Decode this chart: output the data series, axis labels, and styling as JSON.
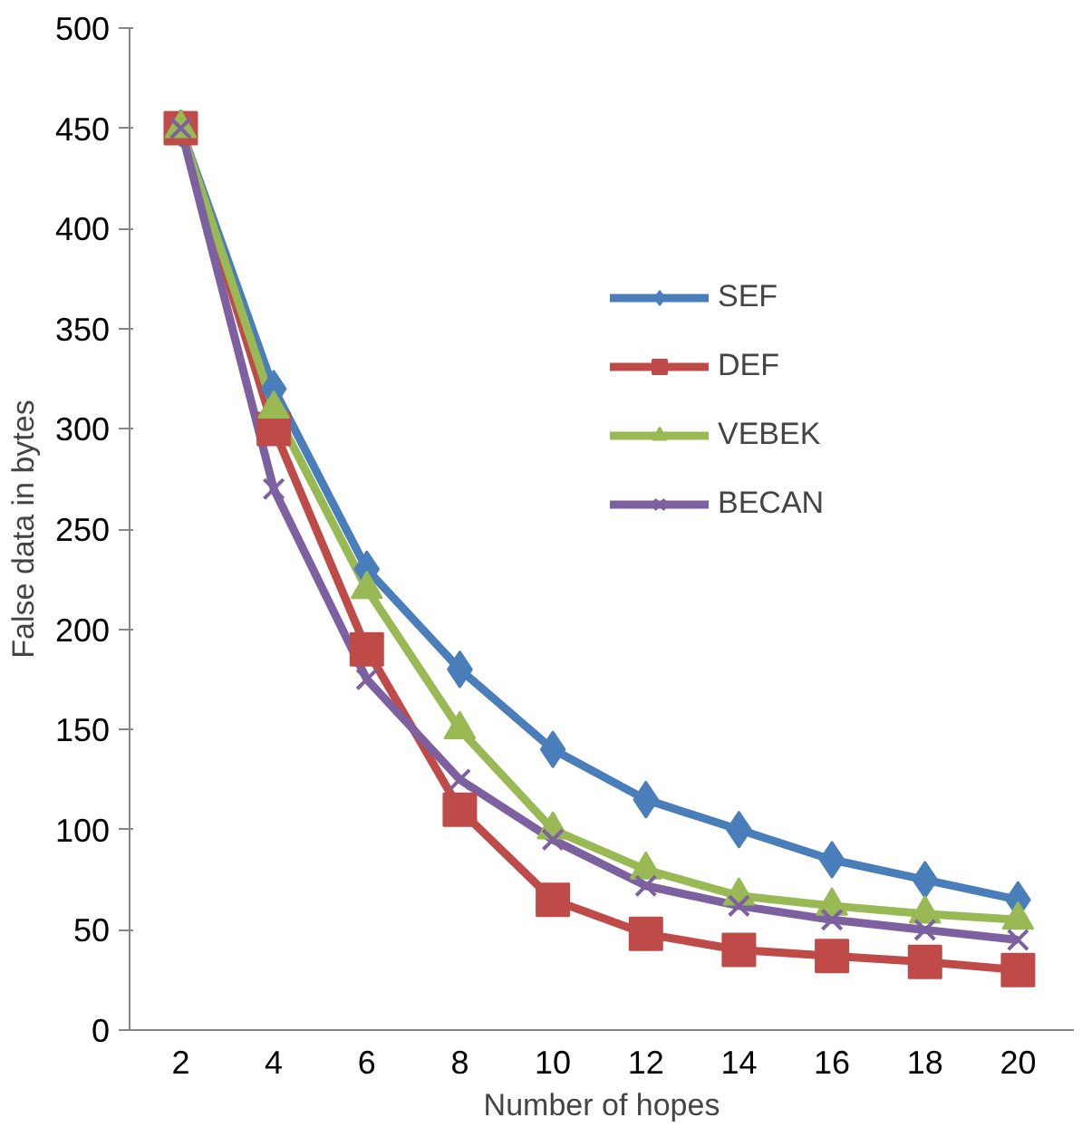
{
  "chart_data": {
    "type": "line",
    "xlabel": "Number of hopes",
    "ylabel": "False data in bytes",
    "categories": [
      "2",
      "4",
      "6",
      "8",
      "10",
      "12",
      "14",
      "16",
      "18",
      "20"
    ],
    "ylim": [
      0,
      500
    ],
    "yticks": [
      0,
      50,
      100,
      150,
      200,
      250,
      300,
      350,
      400,
      450,
      500
    ],
    "grid": false,
    "legend": "top right",
    "series": [
      {
        "name": "SEF",
        "color": "#4a7ebb",
        "marker": "diamond",
        "values": [
          450,
          320,
          230,
          180,
          140,
          115,
          100,
          85,
          75,
          65
        ]
      },
      {
        "name": "DEF",
        "color": "#be4b48",
        "marker": "square",
        "values": [
          450,
          300,
          190,
          110,
          65,
          48,
          40,
          37,
          34,
          30
        ]
      },
      {
        "name": "VEBEK",
        "color": "#98b954",
        "marker": "triangle",
        "values": [
          450,
          310,
          220,
          150,
          100,
          80,
          67,
          62,
          58,
          55
        ]
      },
      {
        "name": "BECAN",
        "color": "#7d60a0",
        "marker": "x",
        "values": [
          450,
          270,
          175,
          125,
          95,
          72,
          62,
          55,
          50,
          45
        ]
      }
    ]
  }
}
